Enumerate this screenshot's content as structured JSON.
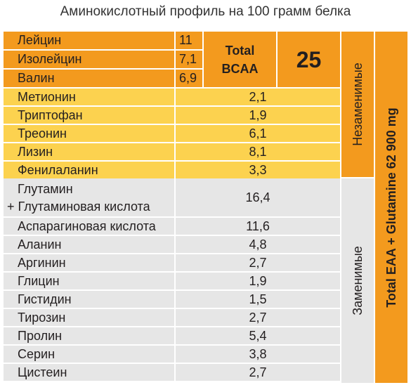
{
  "title": "Аминокислотный профиль на 100 грамм белка",
  "bcaa": {
    "rows": [
      {
        "name": "Лейцин",
        "value": "11"
      },
      {
        "name": "Изолейцин",
        "value": "7,1"
      },
      {
        "name": "Валин",
        "value": "6,9"
      }
    ],
    "total_label_1": "Total",
    "total_label_2": "BCAA",
    "total_value": "25"
  },
  "essential": [
    {
      "name": "Метионин",
      "value": "2,1"
    },
    {
      "name": "Триптофан",
      "value": "1,9"
    },
    {
      "name": "Треонин",
      "value": "6,1"
    },
    {
      "name": "Лизин",
      "value": "8,1"
    },
    {
      "name": "Фенилаланин",
      "value": "3,3"
    }
  ],
  "nonessential": [
    {
      "name_line1": "Глутамин",
      "name_line2": "+ Глутаминовая кислота",
      "value": "16,4"
    },
    {
      "name": "Аспарагиновая кислота",
      "value": "11,6"
    },
    {
      "name": "Аланин",
      "value": "4,8"
    },
    {
      "name": "Аргинин",
      "value": "2,7"
    },
    {
      "name": "Глицин",
      "value": "1,9"
    },
    {
      "name": "Гистидин",
      "value": "1,5"
    },
    {
      "name": "Тирозин",
      "value": "2,7"
    },
    {
      "name": "Пролин",
      "value": "5,4"
    },
    {
      "name": "Серин",
      "value": "3,8"
    },
    {
      "name": "Цистеин",
      "value": "2,7"
    }
  ],
  "labels": {
    "essential": "Незаменимые",
    "nonessential": "Заменимые",
    "total": "Total EAA + Glutamine 62 900 mg"
  },
  "colors": {
    "orange": "#f39a1e",
    "yellow": "#fcd24f",
    "gray": "#e6e6e6"
  }
}
